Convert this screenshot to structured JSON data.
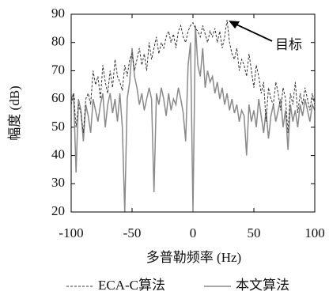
{
  "chart_data": {
    "type": "line",
    "xlabel": "多普勒频率 (Hz)",
    "ylabel": "幅度 (dB)",
    "annotation": {
      "text": "目标",
      "x": 28,
      "y": 88
    },
    "x": [
      -100,
      -98,
      -96,
      -94,
      -92,
      -90,
      -88,
      -86,
      -84,
      -82,
      -80,
      -78,
      -76,
      -74,
      -72,
      -70,
      -68,
      -66,
      -64,
      -62,
      -60,
      -58,
      -56,
      -54,
      -52,
      -50,
      -48,
      -46,
      -44,
      -42,
      -40,
      -38,
      -36,
      -34,
      -32,
      -30,
      -28,
      -26,
      -24,
      -22,
      -20,
      -18,
      -16,
      -14,
      -12,
      -10,
      -8,
      -6,
      -4,
      -2,
      0,
      2,
      4,
      6,
      8,
      10,
      12,
      14,
      16,
      18,
      20,
      22,
      24,
      26,
      28,
      30,
      32,
      34,
      36,
      38,
      40,
      42,
      44,
      46,
      48,
      50,
      52,
      54,
      56,
      58,
      60,
      62,
      64,
      66,
      68,
      70,
      72,
      74,
      76,
      78,
      80,
      82,
      84,
      86,
      88,
      90,
      92,
      94,
      96,
      98,
      100
    ],
    "series": [
      {
        "name": "ECA-C算法",
        "color": "#333333",
        "dash": true,
        "values": [
          58,
          62,
          50,
          58,
          55,
          48,
          60,
          62,
          58,
          70,
          65,
          68,
          60,
          72,
          66,
          62,
          70,
          64,
          74,
          68,
          66,
          63,
          72,
          68,
          74,
          76,
          70,
          74,
          78,
          72,
          76,
          70,
          80,
          74,
          78,
          82,
          76,
          80,
          78,
          82,
          84,
          80,
          83,
          78,
          84,
          86,
          82,
          80,
          84,
          86,
          87,
          85,
          84,
          82,
          86,
          83,
          80,
          84,
          82,
          85,
          80,
          84,
          78,
          82,
          88,
          80,
          76,
          74,
          78,
          70,
          74,
          72,
          68,
          76,
          70,
          64,
          72,
          68,
          62,
          66,
          52,
          64,
          60,
          58,
          66,
          62,
          56,
          64,
          60,
          48,
          62,
          58,
          66,
          55,
          62,
          58,
          64,
          60,
          56,
          62,
          58
        ]
      },
      {
        "name": "本文算法",
        "color": "#8a8a8a",
        "dash": false,
        "values": [
          60,
          62,
          34,
          60,
          56,
          45,
          58,
          54,
          48,
          60,
          56,
          52,
          58,
          62,
          50,
          58,
          62,
          55,
          60,
          52,
          62,
          50,
          20,
          60,
          66,
          78,
          68,
          64,
          58,
          62,
          56,
          60,
          64,
          60,
          27,
          62,
          58,
          64,
          60,
          54,
          62,
          56,
          60,
          58,
          64,
          60,
          55,
          45,
          72,
          80,
          20,
          86,
          72,
          68,
          78,
          64,
          70,
          66,
          68,
          62,
          66,
          60,
          64,
          58,
          62,
          56,
          60,
          55,
          58,
          52,
          56,
          54,
          40,
          58,
          52,
          56,
          50,
          60,
          54,
          48,
          56,
          46,
          54,
          58,
          52,
          56,
          60,
          50,
          56,
          42,
          58,
          52,
          56,
          50,
          58,
          54,
          60,
          56,
          52,
          58,
          56
        ]
      }
    ],
    "xlim": [
      -100,
      100
    ],
    "xticks": [
      -100,
      -50,
      0,
      50,
      100
    ],
    "ylim": [
      20,
      90
    ],
    "yticks": [
      20,
      30,
      40,
      50,
      60,
      70,
      80,
      90
    ]
  }
}
